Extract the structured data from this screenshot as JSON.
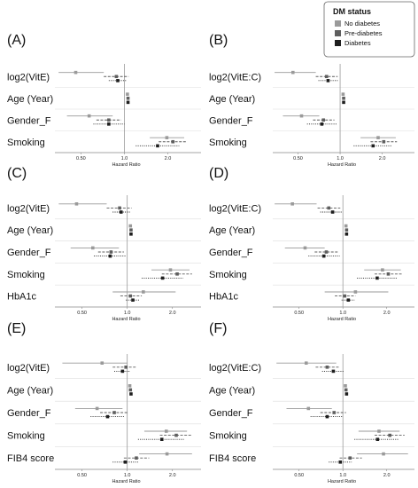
{
  "legend": {
    "title": "DM status",
    "items": [
      {
        "label": "No diabetes",
        "color": "#9a9a9a"
      },
      {
        "label": "Pre-diabetes",
        "color": "#5e5e5e"
      },
      {
        "label": "Diabetes",
        "color": "#1e1e1e"
      }
    ]
  },
  "chart_data": [
    {
      "panel": "(A)",
      "type": "forest",
      "xlabel": "Hazard Ratio",
      "xscale": "log",
      "xlim": [
        0.33,
        3.4
      ],
      "ticks": [
        "0.50",
        "1.0",
        "2.0"
      ],
      "tick_values": [
        0.5,
        1.0,
        2.0
      ],
      "rows": [
        {
          "label": "log2(VitE)",
          "est": [
            0.46,
            0.88,
            0.9
          ],
          "lo": [
            0.35,
            0.72,
            0.78
          ],
          "hi": [
            0.72,
            1.07,
            1.03
          ]
        },
        {
          "label": "Age (Year)",
          "est": [
            1.05,
            1.06,
            1.06
          ],
          "lo": [
            1.04,
            1.05,
            1.05
          ],
          "hi": [
            1.06,
            1.07,
            1.07
          ]
        },
        {
          "label": "Gender_F",
          "est": [
            0.57,
            0.78,
            0.78
          ],
          "lo": [
            0.4,
            0.64,
            0.61
          ],
          "hi": [
            0.83,
            0.95,
            1.0
          ]
        },
        {
          "label": "Smoking",
          "est": [
            1.97,
            2.17,
            1.7
          ],
          "lo": [
            1.5,
            1.73,
            1.2
          ],
          "hi": [
            2.6,
            2.72,
            2.4
          ]
        }
      ]
    },
    {
      "panel": "(B)",
      "type": "forest",
      "xlabel": "Hazard Ratio",
      "xscale": "log",
      "xlim": [
        0.33,
        3.4
      ],
      "ticks": [
        "0.50",
        "1.0",
        "2.0"
      ],
      "tick_values": [
        0.5,
        1.0,
        2.0
      ],
      "rows": [
        {
          "label": "log2(VitE:C)",
          "est": [
            0.46,
            0.8,
            0.82
          ],
          "lo": [
            0.34,
            0.67,
            0.7
          ],
          "hi": [
            0.67,
            0.96,
            0.97
          ]
        },
        {
          "label": "Age (Year)",
          "est": [
            1.05,
            1.06,
            1.06
          ],
          "lo": [
            1.04,
            1.05,
            1.05
          ],
          "hi": [
            1.06,
            1.07,
            1.07
          ]
        },
        {
          "label": "Gender_F",
          "est": [
            0.53,
            0.76,
            0.74
          ],
          "lo": [
            0.39,
            0.64,
            0.58
          ],
          "hi": [
            0.71,
            0.91,
            0.95
          ]
        },
        {
          "label": "Smoking",
          "est": [
            1.87,
            2.05,
            1.72
          ],
          "lo": [
            1.4,
            1.65,
            1.25
          ],
          "hi": [
            2.5,
            2.55,
            2.35
          ]
        }
      ]
    },
    {
      "panel": "(C)",
      "type": "forest",
      "xlabel": "Hazard Ratio",
      "xscale": "log",
      "xlim": [
        0.33,
        3.1
      ],
      "ticks": [
        "0.50",
        "1.0",
        "2.0"
      ],
      "tick_values": [
        0.5,
        1.0,
        2.0
      ],
      "rows": [
        {
          "label": "log2(VitE)",
          "est": [
            0.46,
            0.89,
            0.91
          ],
          "lo": [
            0.35,
            0.73,
            0.8
          ],
          "hi": [
            0.73,
            1.07,
            1.04
          ]
        },
        {
          "label": "Age (Year)",
          "est": [
            1.05,
            1.06,
            1.06
          ],
          "lo": [
            1.04,
            1.05,
            1.05
          ],
          "hi": [
            1.06,
            1.07,
            1.07
          ]
        },
        {
          "label": "Gender_F",
          "est": [
            0.59,
            0.78,
            0.77
          ],
          "lo": [
            0.42,
            0.64,
            0.6
          ],
          "hi": [
            0.88,
            0.95,
            0.98
          ]
        },
        {
          "label": "Smoking",
          "est": [
            1.94,
            2.15,
            1.72
          ],
          "lo": [
            1.45,
            1.7,
            1.25
          ],
          "hi": [
            2.6,
            2.7,
            2.35
          ]
        },
        {
          "label": "HbA1c",
          "est": [
            1.28,
            1.05,
            1.09
          ],
          "lo": [
            0.8,
            0.9,
            0.98
          ],
          "hi": [
            2.1,
            1.25,
            1.2
          ]
        }
      ]
    },
    {
      "panel": "(D)",
      "type": "forest",
      "xlabel": "Hazard Ratio",
      "xscale": "log",
      "xlim": [
        0.33,
        3.1
      ],
      "ticks": [
        "0.50",
        "1.0",
        "2.0"
      ],
      "tick_values": [
        0.5,
        1.0,
        2.0
      ],
      "rows": [
        {
          "label": "log2(VitE:C)",
          "est": [
            0.45,
            0.8,
            0.85
          ],
          "lo": [
            0.34,
            0.67,
            0.7
          ],
          "hi": [
            0.66,
            0.96,
            0.99
          ]
        },
        {
          "label": "Age (Year)",
          "est": [
            1.05,
            1.06,
            1.06
          ],
          "lo": [
            1.04,
            1.05,
            1.05
          ],
          "hi": [
            1.06,
            1.07,
            1.07
          ]
        },
        {
          "label": "Gender_F",
          "est": [
            0.55,
            0.77,
            0.74
          ],
          "lo": [
            0.4,
            0.64,
            0.58
          ],
          "hi": [
            0.75,
            0.92,
            0.95
          ]
        },
        {
          "label": "Smoking",
          "est": [
            1.87,
            2.05,
            1.72
          ],
          "lo": [
            1.4,
            1.65,
            1.25
          ],
          "hi": [
            2.5,
            2.55,
            2.35
          ]
        },
        {
          "label": "HbA1c",
          "est": [
            1.22,
            1.03,
            1.09
          ],
          "lo": [
            0.75,
            0.88,
            0.98
          ],
          "hi": [
            2.05,
            1.22,
            1.2
          ]
        }
      ]
    },
    {
      "panel": "(E)",
      "type": "forest",
      "xlabel": "Hazard Ratio",
      "xscale": "log",
      "xlim": [
        0.33,
        3.1
      ],
      "ticks": [
        "0.50",
        "1.0",
        "2.0"
      ],
      "tick_values": [
        0.5,
        1.0,
        2.0
      ],
      "rows": [
        {
          "label": "log2(VitE)",
          "est": [
            0.68,
            0.98,
            0.93
          ],
          "lo": [
            0.37,
            0.8,
            0.82
          ],
          "hi": [
            1.0,
            1.15,
            1.05
          ]
        },
        {
          "label": "Age (Year)",
          "est": [
            1.04,
            1.05,
            1.06
          ],
          "lo": [
            1.03,
            1.04,
            1.05
          ],
          "hi": [
            1.05,
            1.06,
            1.07
          ]
        },
        {
          "label": "Gender_F",
          "est": [
            0.63,
            0.82,
            0.74
          ],
          "lo": [
            0.45,
            0.66,
            0.57
          ],
          "hi": [
            0.93,
            1.0,
            0.95
          ]
        },
        {
          "label": "Smoking",
          "est": [
            1.82,
            2.12,
            1.7
          ],
          "lo": [
            1.3,
            1.65,
            1.18
          ],
          "hi": [
            2.5,
            2.7,
            2.4
          ]
        },
        {
          "label": "FIB4 score",
          "est": [
            1.84,
            1.15,
            0.97
          ],
          "lo": [
            1.2,
            0.95,
            0.8
          ],
          "hi": [
            2.7,
            1.4,
            1.18
          ]
        }
      ]
    },
    {
      "panel": "(F)",
      "type": "forest",
      "xlabel": "Hazard Ratio",
      "xscale": "log",
      "xlim": [
        0.33,
        3.1
      ],
      "ticks": [
        "0.50",
        "1.0",
        "2.0"
      ],
      "tick_values": [
        0.5,
        1.0,
        2.0
      ],
      "rows": [
        {
          "label": "log2(VitE:C)",
          "est": [
            0.56,
            0.78,
            0.86
          ],
          "lo": [
            0.35,
            0.65,
            0.72
          ],
          "hi": [
            0.9,
            0.94,
            1.01
          ]
        },
        {
          "label": "Age (Year)",
          "est": [
            1.04,
            1.05,
            1.06
          ],
          "lo": [
            1.03,
            1.04,
            1.05
          ],
          "hi": [
            1.05,
            1.06,
            1.07
          ]
        },
        {
          "label": "Gender_F",
          "est": [
            0.58,
            0.87,
            0.78
          ],
          "lo": [
            0.41,
            0.7,
            0.6
          ],
          "hi": [
            0.84,
            1.05,
            1.0
          ]
        },
        {
          "label": "Smoking",
          "est": [
            1.77,
            2.1,
            1.73
          ],
          "lo": [
            1.28,
            1.65,
            1.2
          ],
          "hi": [
            2.45,
            2.65,
            2.4
          ]
        },
        {
          "label": "FIB4 score",
          "est": [
            1.9,
            1.12,
            0.96
          ],
          "lo": [
            1.25,
            0.95,
            0.8
          ],
          "hi": [
            2.8,
            1.35,
            1.15
          ]
        }
      ]
    }
  ]
}
